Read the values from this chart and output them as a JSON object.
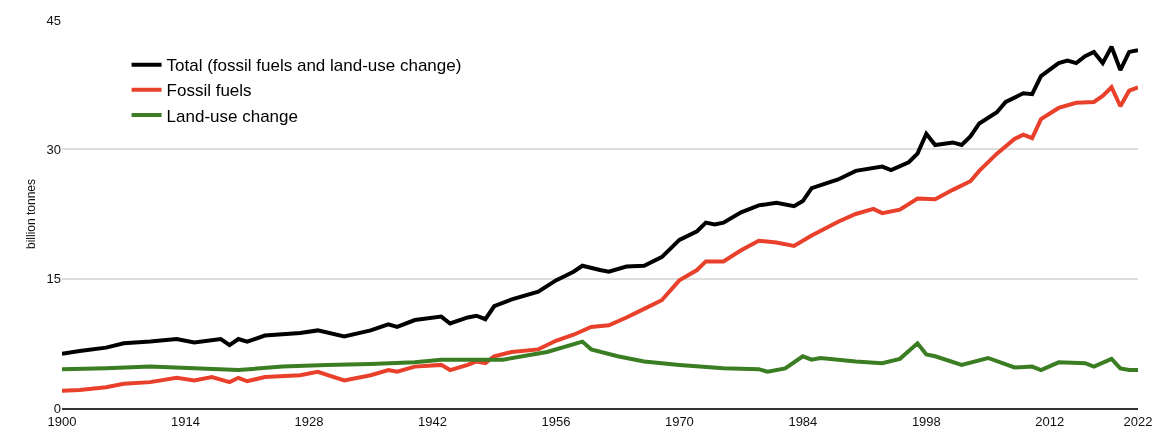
{
  "chart_data": {
    "type": "line",
    "ylabel": "billion tonnes",
    "xlim": [
      1900,
      2022
    ],
    "xticks": [
      1900,
      1914,
      1928,
      1942,
      1956,
      1970,
      1984,
      1998,
      2012,
      2022
    ],
    "ylim": [
      0,
      45
    ],
    "yticks": [
      0,
      15,
      30,
      45
    ],
    "grid": "y",
    "legend": "top left",
    "line_style": "solid",
    "marker": "none",
    "series": [
      {
        "name": "Total (fossil fuels and land-use change)",
        "color": "#000000",
        "x": [
          1900,
          1902,
          1905,
          1907,
          1910,
          1913,
          1915,
          1918,
          1919,
          1920,
          1921,
          1923,
          1927,
          1929,
          1932,
          1935,
          1937,
          1938,
          1940,
          1943,
          1944,
          1946,
          1947,
          1948,
          1949,
          1951,
          1954,
          1956,
          1958,
          1959,
          1961,
          1962,
          1964,
          1966,
          1968,
          1970,
          1972,
          1973,
          1974,
          1975,
          1977,
          1979,
          1981,
          1983,
          1984,
          1985,
          1988,
          1990,
          1993,
          1994,
          1996,
          1997,
          1998,
          1999,
          2001,
          2002,
          2003,
          2004,
          2006,
          2007,
          2009,
          2010,
          2011,
          2013,
          2014,
          2015,
          2016,
          2017,
          2018,
          2019,
          2020,
          2021,
          2022
        ],
        "values": [
          6.3,
          6.6,
          7.0,
          7.5,
          7.7,
          8.0,
          7.6,
          8.0,
          7.3,
          8.0,
          7.7,
          8.4,
          8.7,
          9.0,
          8.3,
          9.0,
          9.7,
          9.4,
          10.2,
          10.6,
          9.8,
          10.5,
          10.7,
          10.3,
          11.8,
          12.6,
          13.5,
          14.8,
          15.8,
          16.5,
          16.0,
          15.8,
          16.4,
          16.5,
          17.5,
          19.5,
          20.5,
          21.5,
          21.3,
          21.5,
          22.7,
          23.5,
          23.8,
          23.4,
          24.0,
          25.5,
          26.5,
          27.5,
          28.0,
          27.6,
          28.5,
          29.5,
          31.8,
          30.5,
          30.8,
          30.5,
          31.5,
          33.0,
          34.3,
          35.5,
          36.5,
          36.4,
          38.5,
          40.0,
          40.3,
          40.0,
          40.8,
          41.3,
          40.0,
          41.9,
          39.2,
          41.3,
          41.5
        ]
      },
      {
        "name": "Fossil fuels",
        "color": "#e8402a",
        "x": [
          1900,
          1902,
          1905,
          1907,
          1910,
          1913,
          1915,
          1917,
          1919,
          1920,
          1921,
          1923,
          1927,
          1929,
          1932,
          1935,
          1937,
          1938,
          1940,
          1943,
          1944,
          1946,
          1947,
          1948,
          1949,
          1951,
          1954,
          1956,
          1958,
          1960,
          1962,
          1964,
          1966,
          1968,
          1970,
          1972,
          1973,
          1975,
          1977,
          1979,
          1981,
          1983,
          1985,
          1988,
          1990,
          1992,
          1993,
          1995,
          1997,
          1999,
          2001,
          2003,
          2004,
          2006,
          2008,
          2009,
          2010,
          2011,
          2013,
          2015,
          2017,
          2018,
          2019,
          2020,
          2021,
          2022
        ],
        "values": [
          2.0,
          2.1,
          2.4,
          2.8,
          3.0,
          3.5,
          3.2,
          3.6,
          3.0,
          3.5,
          3.1,
          3.6,
          3.8,
          4.2,
          3.2,
          3.8,
          4.4,
          4.2,
          4.8,
          5.0,
          4.4,
          5.0,
          5.4,
          5.2,
          6.0,
          6.5,
          6.8,
          7.8,
          8.5,
          9.4,
          9.6,
          10.5,
          11.5,
          12.5,
          14.8,
          16.0,
          17.0,
          17.0,
          18.3,
          19.4,
          19.2,
          18.8,
          20.0,
          21.6,
          22.5,
          23.1,
          22.6,
          23.0,
          24.3,
          24.2,
          25.3,
          26.3,
          27.5,
          29.5,
          31.2,
          31.7,
          31.3,
          33.5,
          34.8,
          35.4,
          35.5,
          36.2,
          37.2,
          35.0,
          36.8,
          37.2
        ]
      },
      {
        "name": "Land-use change",
        "color": "#3a7d22",
        "x": [
          1900,
          1905,
          1910,
          1915,
          1920,
          1925,
          1930,
          1935,
          1940,
          1943,
          1950,
          1955,
          1959,
          1960,
          1963,
          1966,
          1970,
          1975,
          1979,
          1980,
          1982,
          1984,
          1985,
          1986,
          1990,
          1993,
          1995,
          1997,
          1998,
          1999,
          2002,
          2005,
          2008,
          2010,
          2011,
          2013,
          2016,
          2017,
          2019,
          2020,
          2021,
          2022
        ],
        "values": [
          4.5,
          4.6,
          4.8,
          4.6,
          4.4,
          4.8,
          5.0,
          5.1,
          5.3,
          5.6,
          5.6,
          6.5,
          7.7,
          6.8,
          6.0,
          5.4,
          5.0,
          4.6,
          4.5,
          4.2,
          4.6,
          6.0,
          5.6,
          5.8,
          5.4,
          5.2,
          5.7,
          7.5,
          6.2,
          6.0,
          5.0,
          5.8,
          4.7,
          4.8,
          4.4,
          5.3,
          5.2,
          4.8,
          5.7,
          4.6,
          4.4,
          4.4
        ]
      }
    ]
  }
}
